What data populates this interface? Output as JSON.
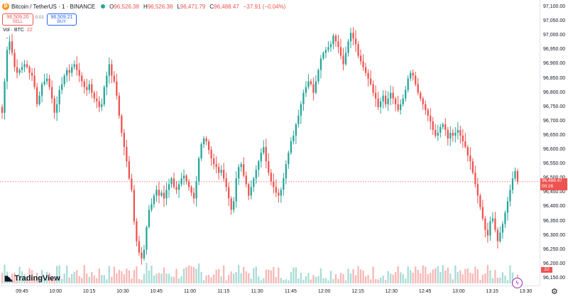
{
  "header": {
    "symbol": "Bitcoin / TetherUS · 1 · BINANCE",
    "open_label": "O",
    "open": "96,526.38",
    "high_label": "H",
    "high": "96,526.38",
    "low_label": "L",
    "low": "96,471.79",
    "close_label": "C",
    "close": "96,488.47",
    "change": "−37.91 (−0.04%)"
  },
  "trade": {
    "sell_price": "96,509.20",
    "sell_label": "SELL",
    "spread": "0.01",
    "buy_price": "96,509.21",
    "buy_label": "BUY"
  },
  "volume_legend": {
    "label": "Vol · BTC",
    "value": "22"
  },
  "logo": {
    "text": "TradingView"
  },
  "colors": {
    "up": "#26a69a",
    "down": "#ef5350",
    "up_vol": "#a9dcd6",
    "down_vol": "#f6b8b6"
  },
  "last_price": {
    "value": "96,488.47",
    "countdown": "00:26"
  },
  "volume_value": "22",
  "chart_data": {
    "type": "candlestick",
    "y_range": [
      96125,
      97125
    ],
    "y_ticks": [
      "97,100.00",
      "97,050.00",
      "97,000.00",
      "96,950.00",
      "96,900.00",
      "96,850.00",
      "96,800.00",
      "96,750.00",
      "96,700.00",
      "96,650.00",
      "96,600.00",
      "96,550.00",
      "96,500.00",
      "96,450.00",
      "96,400.00",
      "96,350.00",
      "96,300.00",
      "96,250.00",
      "96,200.00",
      "96,150.00"
    ],
    "time_ticks": [
      "09:45",
      "10:00",
      "10:15",
      "10:30",
      "10:45",
      "11:00",
      "11:15",
      "11:30",
      "11:45",
      "12:00",
      "12:15",
      "12:30",
      "12:45",
      "13:00",
      "13:15",
      "13:30"
    ],
    "last_price": 96488.47,
    "closes": [
      96730,
      96840,
      96950,
      96980,
      96940,
      96890,
      96870,
      96880,
      96890,
      96900,
      96890,
      96870,
      96860,
      96820,
      96760,
      96790,
      96830,
      96840,
      96850,
      96820,
      96780,
      96730,
      96760,
      96810,
      96830,
      96860,
      96880,
      96870,
      96890,
      96900,
      96880,
      96860,
      96840,
      96820,
      96810,
      96830,
      96800,
      96780,
      96770,
      96750,
      96760,
      96820,
      96860,
      96900,
      96860,
      96840,
      96790,
      96720,
      96660,
      96610,
      96560,
      96500,
      96460,
      96350,
      96280,
      96240,
      96220,
      96250,
      96330,
      96390,
      96410,
      96440,
      96460,
      96440,
      96450,
      96430,
      96460,
      96480,
      96500,
      96470,
      96460,
      96480,
      96500,
      96510,
      96490,
      96470,
      96450,
      96430,
      96490,
      96570,
      96620,
      96640,
      96630,
      96600,
      96570,
      96550,
      96540,
      96520,
      96530,
      96500,
      96470,
      96430,
      96390,
      96420,
      96500,
      96540,
      96550,
      96510,
      96480,
      96440,
      96470,
      96500,
      96530,
      96560,
      96590,
      96610,
      96560,
      96520,
      96490,
      96470,
      96450,
      96440,
      96460,
      96500,
      96550,
      96590,
      96630,
      96650,
      96690,
      96720,
      96760,
      96800,
      96820,
      96840,
      96830,
      96800,
      96840,
      96880,
      96920,
      96940,
      96950,
      96960,
      96970,
      97000,
      96980,
      96960,
      96930,
      96900,
      96940,
      96980,
      97010,
      96990,
      96970,
      96930,
      96910,
      96890,
      96870,
      96850,
      96830,
      96800,
      96780,
      96750,
      96770,
      96790,
      96760,
      96780,
      96800,
      96780,
      96760,
      96740,
      96760,
      96780,
      96810,
      96850,
      96870,
      96860,
      96830,
      96800,
      96780,
      96760,
      96740,
      96720,
      96700,
      96670,
      96650,
      96660,
      96680,
      96690,
      96670,
      96640,
      96660,
      96650,
      96660,
      96670,
      96650,
      96630,
      96610,
      96580,
      96560,
      96520,
      96480,
      96440,
      96400,
      96360,
      96320,
      96300,
      96350,
      96360,
      96320,
      96280,
      96310,
      96340,
      96380,
      96420,
      96460,
      96500,
      96526,
      96488
    ]
  }
}
